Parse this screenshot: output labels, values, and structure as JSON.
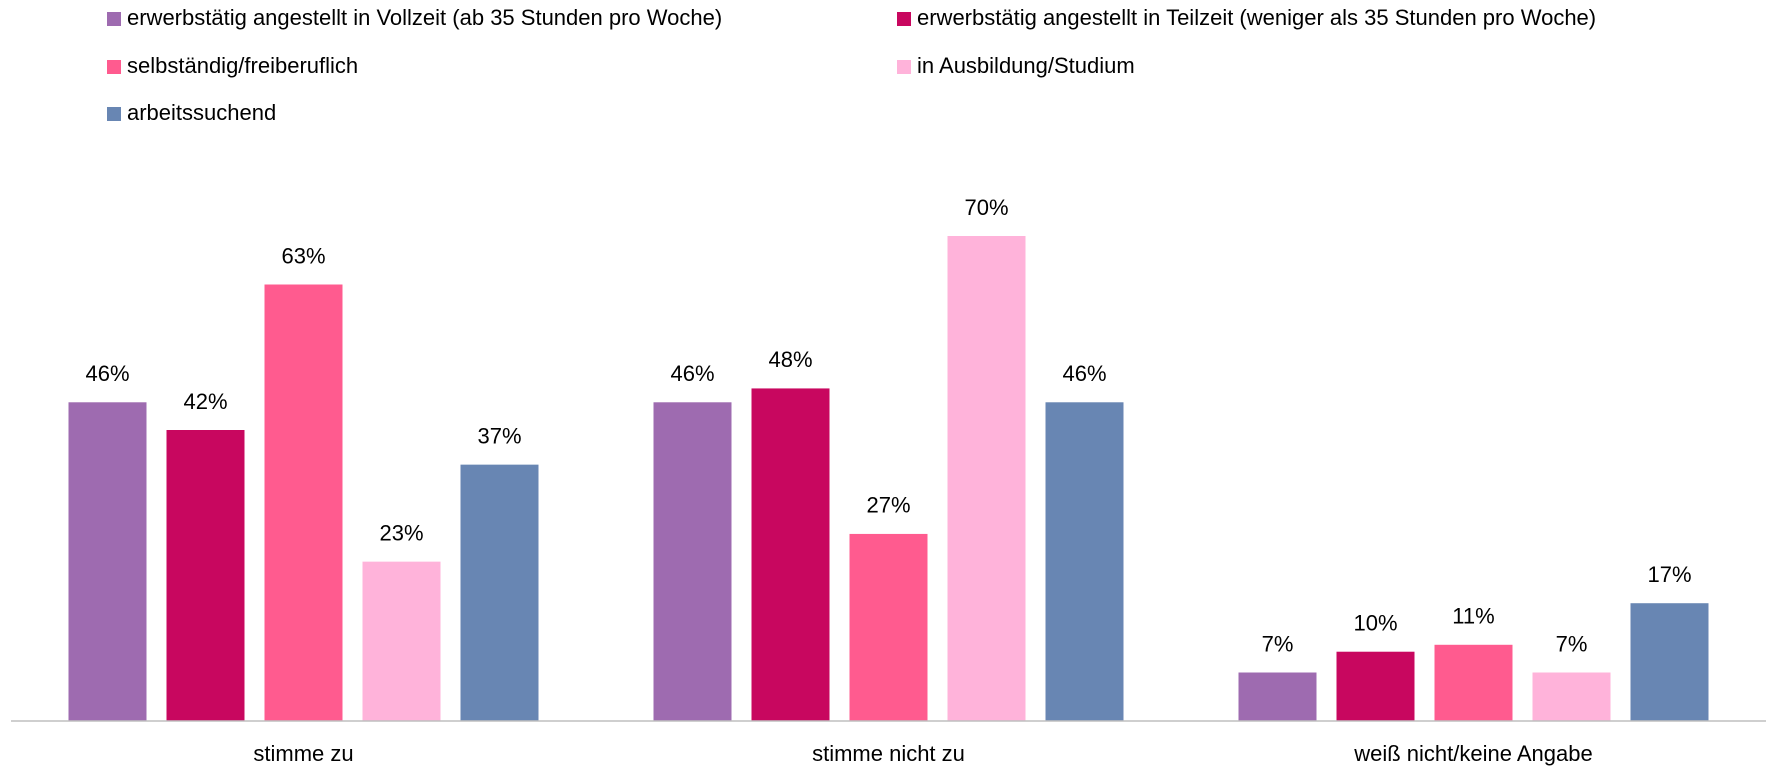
{
  "chart_data": {
    "type": "bar",
    "categories": [
      "stimme zu",
      "stimme nicht zu",
      "weiß nicht/keine Angabe"
    ],
    "series": [
      {
        "name": "erwerbstätig angestellt in Vollzeit (ab 35 Stunden pro Woche)",
        "color": "#9e6bb0",
        "values": [
          46,
          46,
          7
        ],
        "value_labels": [
          "46%",
          "46%",
          "7%"
        ]
      },
      {
        "name": "erwerbstätig angestellt in Teilzeit (weniger als 35 Stunden pro Woche)",
        "color": "#c8075f",
        "values": [
          42,
          48,
          10
        ],
        "value_labels": [
          "42%",
          "48%",
          "10%"
        ]
      },
      {
        "name": "selbständig/freiberuflich",
        "color": "#ff5b8f",
        "values": [
          63,
          27,
          11
        ],
        "value_labels": [
          "63%",
          "27%",
          "11%"
        ]
      },
      {
        "name": "in Ausbildung/Studium",
        "color": "#ffb3da",
        "values": [
          23,
          70,
          7
        ],
        "value_labels": [
          "23%",
          "70%",
          "7%"
        ]
      },
      {
        "name": "arbeitssuchend",
        "color": "#6886b3",
        "values": [
          37,
          46,
          17
        ],
        "value_labels": [
          "37%",
          "46%",
          "17%"
        ]
      }
    ],
    "legend": "top"
  }
}
